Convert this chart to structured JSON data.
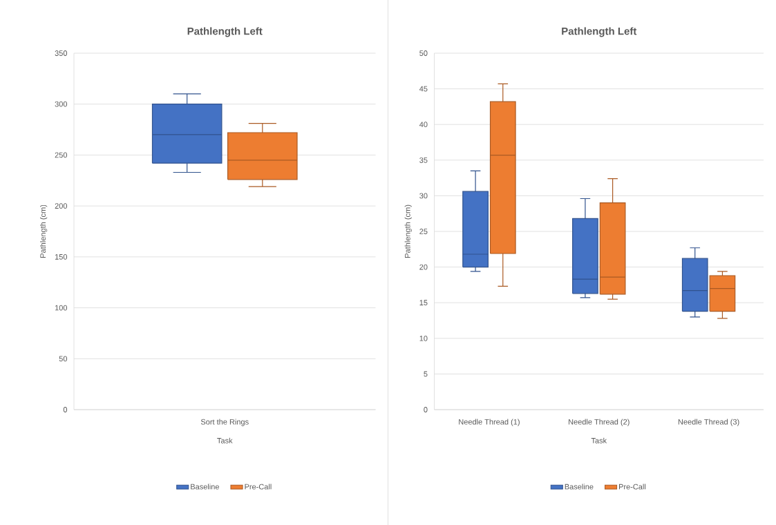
{
  "chart_data": [
    {
      "type": "box",
      "title": "Pathlength Left",
      "xlabel": "Task",
      "ylabel": "Pathlength (cm)",
      "categories": [
        "Sort the Rings"
      ],
      "ylim": [
        0,
        350
      ],
      "yticks": [
        0,
        50,
        100,
        150,
        200,
        250,
        300,
        350
      ],
      "grid": "y",
      "legend": "bottom",
      "series": [
        {
          "name": "Baseline",
          "color": "#4472c4",
          "boxes": [
            {
              "low": 233,
              "q1": 242,
              "median": 270,
              "q3": 300,
              "high": 310
            }
          ]
        },
        {
          "name": "Pre-Call",
          "color": "#ed7d31",
          "boxes": [
            {
              "low": 219,
              "q1": 226,
              "median": 245,
              "q3": 272,
              "high": 281
            }
          ]
        }
      ]
    },
    {
      "type": "box",
      "title": "Pathlength Left",
      "xlabel": "Task",
      "ylabel": "Pathlength (cm)",
      "categories": [
        "Needle Thread (1)",
        "Needle Thread (2)",
        "Needle Thread (3)"
      ],
      "ylim": [
        0,
        50
      ],
      "yticks": [
        0,
        5,
        10,
        15,
        20,
        25,
        30,
        35,
        40,
        45,
        50
      ],
      "grid": "y",
      "legend": "bottom",
      "series": [
        {
          "name": "Baseline",
          "color": "#4472c4",
          "boxes": [
            {
              "low": 19.4,
              "q1": 20.0,
              "median": 21.8,
              "q3": 30.6,
              "high": 33.5
            },
            {
              "low": 15.7,
              "q1": 16.3,
              "median": 18.3,
              "q3": 26.8,
              "high": 29.6
            },
            {
              "low": 13.0,
              "q1": 13.8,
              "median": 16.7,
              "q3": 21.2,
              "high": 22.7
            }
          ]
        },
        {
          "name": "Pre-Call",
          "color": "#ed7d31",
          "boxes": [
            {
              "low": 17.3,
              "q1": 21.9,
              "median": 35.7,
              "q3": 43.2,
              "high": 45.7
            },
            {
              "low": 15.5,
              "q1": 16.2,
              "median": 18.6,
              "q3": 29.0,
              "high": 32.4
            },
            {
              "low": 12.8,
              "q1": 13.8,
              "median": 17.0,
              "q3": 18.8,
              "high": 19.4
            }
          ]
        }
      ]
    }
  ]
}
